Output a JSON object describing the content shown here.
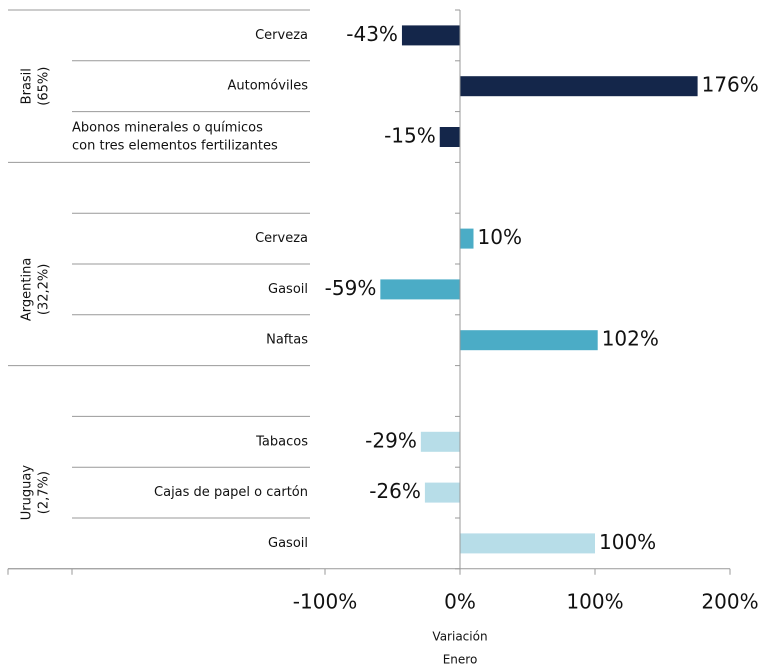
{
  "chart_data": {
    "type": "bar",
    "orientation": "horizontal",
    "groups": [
      {
        "name": "Brasil",
        "share": "(65%)",
        "color": "#14264a",
        "categories": [
          "Cerveza",
          "Automóviles",
          [
            "Abonos minerales o químicos",
            "con tres elementos fertilizantes"
          ]
        ],
        "values": [
          -43,
          176,
          -15
        ],
        "value_labels": [
          "-43%",
          "176%",
          "-15%"
        ]
      },
      {
        "name": "Argentina",
        "share": "(32,2%)",
        "color": "#4bacc6",
        "categories": [
          "Cerveza",
          "Gasoil",
          "Naftas"
        ],
        "values": [
          10,
          -59,
          102
        ],
        "value_labels": [
          "10%",
          "-59%",
          "102%"
        ]
      },
      {
        "name": "Uruguay",
        "share": "(2,7%)",
        "color": "#b7dde8",
        "categories": [
          "Tabacos",
          "Cajas de papel o cartón",
          "Gasoil"
        ],
        "values": [
          -29,
          -26,
          100
        ],
        "value_labels": [
          "-29%",
          "-26%",
          "100%"
        ]
      }
    ],
    "xlim": [
      -100,
      200
    ],
    "xticks": [
      {
        "value": -100,
        "label": "-100%"
      },
      {
        "value": 0,
        "label": "0%"
      },
      {
        "value": 100,
        "label": "100%"
      },
      {
        "value": 200,
        "label": "200%"
      }
    ],
    "xlabel": [
      "Variación",
      "Enero"
    ]
  }
}
